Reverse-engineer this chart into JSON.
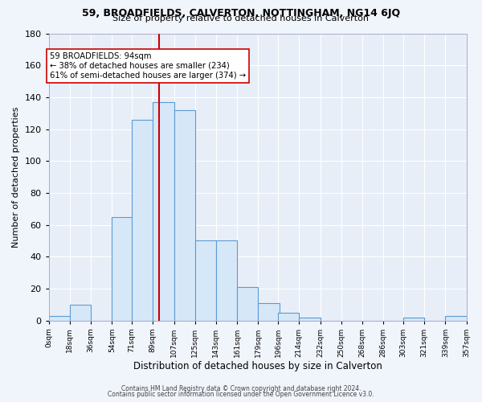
{
  "title1": "59, BROADFIELDS, CALVERTON, NOTTINGHAM, NG14 6JQ",
  "title2": "Size of property relative to detached houses in Calverton",
  "xlabel": "Distribution of detached houses by size in Calverton",
  "ylabel": "Number of detached properties",
  "bin_edges": [
    0,
    18,
    36,
    54,
    71,
    89,
    107,
    125,
    143,
    161,
    179,
    196,
    214,
    232,
    250,
    268,
    286,
    303,
    321,
    339,
    357
  ],
  "bin_counts": [
    3,
    10,
    0,
    65,
    126,
    137,
    132,
    50,
    50,
    21,
    11,
    5,
    2,
    0,
    0,
    0,
    0,
    2,
    0,
    3
  ],
  "bar_color": "#d6e8f7",
  "bar_edge_color": "#5b9bd5",
  "vline_x": 94,
  "vline_color": "#cc0000",
  "annotation_line1": "59 BROADFIELDS: 94sqm",
  "annotation_line2": "← 38% of detached houses are smaller (234)",
  "annotation_line3": "61% of semi-detached houses are larger (374) →",
  "annotation_box_color": "#ffffff",
  "annotation_box_edge": "#cc0000",
  "ylim": [
    0,
    180
  ],
  "tick_labels": [
    "0sqm",
    "18sqm",
    "36sqm",
    "54sqm",
    "71sqm",
    "89sqm",
    "107sqm",
    "125sqm",
    "143sqm",
    "161sqm",
    "179sqm",
    "196sqm",
    "214sqm",
    "232sqm",
    "250sqm",
    "268sqm",
    "286sqm",
    "303sqm",
    "321sqm",
    "339sqm",
    "357sqm"
  ],
  "footer1": "Contains HM Land Registry data © Crown copyright and database right 2024.",
  "footer2": "Contains public sector information licensed under the Open Government Licence v3.0.",
  "plot_bg_color": "#e8eef7",
  "fig_bg_color": "#f0f4fb",
  "grid_color": "#ffffff",
  "title1_fontsize": 9,
  "title2_fontsize": 8,
  "ylabel_fontsize": 8,
  "xlabel_fontsize": 8.5,
  "xtick_fontsize": 6.5,
  "ytick_fontsize": 8
}
